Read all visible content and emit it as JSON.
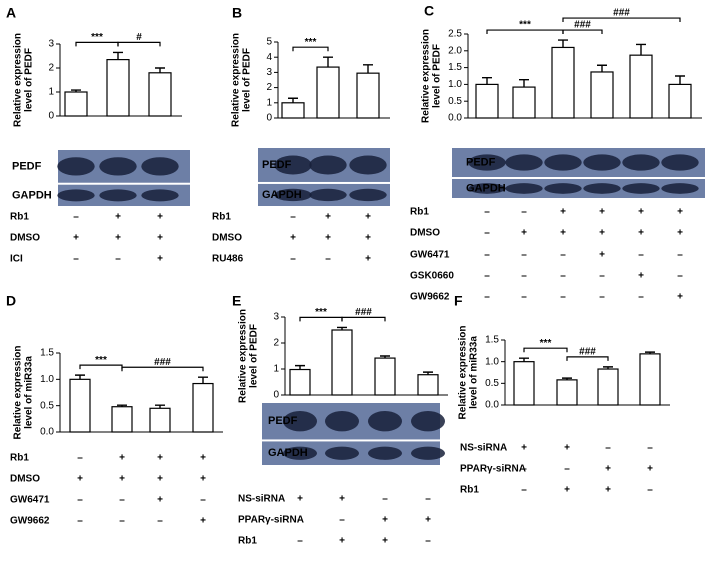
{
  "chart_data": [
    {
      "type": "bar",
      "panel": "A",
      "ylabel": [
        "Relative expression",
        "level of PEDF"
      ],
      "categories": [
        null,
        null,
        null
      ],
      "values": [
        1.0,
        2.35,
        1.8
      ],
      "errors": [
        0.08,
        0.3,
        0.2
      ],
      "ylim": [
        0,
        3
      ],
      "yticks": [
        0,
        1,
        2,
        3
      ],
      "color": "#ffffff",
      "annotations": [
        {
          "label": "***",
          "from": 0,
          "to": 1
        },
        {
          "label": "#",
          "from": 1,
          "to": 2
        }
      ],
      "blots": [
        "PEDF",
        "GAPDH"
      ],
      "treatments": [
        {
          "name": "Rb1",
          "marks": [
            "–",
            "+",
            "+"
          ]
        },
        {
          "name": "DMSO",
          "marks": [
            "+",
            "+",
            "+"
          ]
        },
        {
          "name": "ICI",
          "marks": [
            "–",
            "–",
            "+"
          ]
        }
      ]
    },
    {
      "type": "bar",
      "panel": "B",
      "ylabel": [
        "Relative expression",
        "level of PEDF"
      ],
      "categories": [
        null,
        null,
        null
      ],
      "values": [
        1.0,
        3.35,
        2.95
      ],
      "errors": [
        0.3,
        0.65,
        0.55
      ],
      "ylim": [
        0,
        5
      ],
      "yticks": [
        0,
        1,
        2,
        3,
        4,
        5
      ],
      "color": "#ffffff",
      "annotations": [
        {
          "label": "***",
          "from": 0,
          "to": 1
        }
      ],
      "blots": [
        "PEDF",
        "GAPDH"
      ],
      "treatments": [
        {
          "name": "Rb1",
          "marks": [
            "–",
            "+",
            "+"
          ]
        },
        {
          "name": "DMSO",
          "marks": [
            "+",
            "+",
            "+"
          ]
        },
        {
          "name": "RU486",
          "marks": [
            "–",
            "–",
            "+"
          ]
        }
      ]
    },
    {
      "type": "bar",
      "panel": "C",
      "ylabel": [
        "Relative expression",
        "level of PEDF"
      ],
      "categories": [
        null,
        null,
        null,
        null,
        null,
        null
      ],
      "values": [
        1.0,
        0.92,
        2.1,
        1.37,
        1.87,
        1.0
      ],
      "errors": [
        0.2,
        0.22,
        0.22,
        0.2,
        0.32,
        0.25
      ],
      "ylim": [
        0,
        2.5
      ],
      "yticks": [
        {
          "value": 0,
          "label": "0.0"
        },
        0.5,
        {
          "value": 1,
          "label": "1.0"
        },
        1.5,
        {
          "value": 2,
          "label": "2.0"
        },
        2.5
      ],
      "color": "#ffffff",
      "annotations": [
        {
          "label": "***",
          "from": 0,
          "to": 2
        },
        {
          "label": "###",
          "from": 2,
          "to": 3
        },
        {
          "label": "###",
          "from": 2,
          "to": 5
        }
      ],
      "blots": [
        "PEDF",
        "GAPDH"
      ],
      "treatments": [
        {
          "name": "Rb1",
          "marks": [
            "–",
            "–",
            "+",
            "+",
            "+",
            "+"
          ]
        },
        {
          "name": "DMSO",
          "marks": [
            "–",
            "+",
            "+",
            "+",
            "+",
            "+"
          ]
        },
        {
          "name": "GW6471",
          "marks": [
            "–",
            "–",
            "–",
            "+",
            "–",
            "–"
          ]
        },
        {
          "name": "GSK0660",
          "marks": [
            "–",
            "–",
            "–",
            "–",
            "+",
            "–"
          ]
        },
        {
          "name": "GW9662",
          "marks": [
            "–",
            "–",
            "–",
            "–",
            "–",
            "+"
          ]
        }
      ]
    },
    {
      "type": "bar",
      "panel": "D",
      "ylabel": [
        "Relative expression",
        "level of miR33a"
      ],
      "categories": [
        null,
        null,
        null,
        null
      ],
      "values": [
        1.0,
        0.48,
        0.45,
        0.92
      ],
      "errors": [
        0.08,
        0.03,
        0.06,
        0.12
      ],
      "ylim": [
        0,
        1.5
      ],
      "yticks": [
        {
          "value": 0,
          "label": "0.0"
        },
        0.5,
        {
          "value": 1,
          "label": "1.0"
        },
        1.5
      ],
      "color": "#ffffff",
      "annotations": [
        {
          "label": "***",
          "from": 0,
          "to": 1
        },
        {
          "label": "###",
          "from": 1,
          "to": 3
        }
      ],
      "treatments": [
        {
          "name": "Rb1",
          "marks": [
            "–",
            "+",
            "+",
            "+"
          ]
        },
        {
          "name": "DMSO",
          "marks": [
            "+",
            "+",
            "+",
            "+"
          ]
        },
        {
          "name": "GW6471",
          "marks": [
            "–",
            "–",
            "+",
            "–"
          ]
        },
        {
          "name": "GW9662",
          "marks": [
            "–",
            "–",
            "–",
            "+"
          ]
        }
      ]
    },
    {
      "type": "bar",
      "panel": "E",
      "ylabel": [
        "Relative expression",
        "level of PEDF"
      ],
      "categories": [
        null,
        null,
        null,
        null
      ],
      "values": [
        0.98,
        2.5,
        1.42,
        0.78
      ],
      "errors": [
        0.15,
        0.1,
        0.08,
        0.1
      ],
      "ylim": [
        0,
        3
      ],
      "yticks": [
        0,
        1,
        2,
        3
      ],
      "color": "#ffffff",
      "annotations": [
        {
          "label": "***",
          "from": 0,
          "to": 1
        },
        {
          "label": "###",
          "from": 1,
          "to": 2
        }
      ],
      "blots": [
        "PEDF",
        "GAPDH"
      ],
      "treatments": [
        {
          "name": "NS-siRNA",
          "marks": [
            "+",
            "+",
            "–",
            "–"
          ]
        },
        {
          "name": "PPARγ-siRNA",
          "marks": [
            "–",
            "–",
            "+",
            "+"
          ]
        },
        {
          "name": "Rb1",
          "marks": [
            "–",
            "+",
            "+",
            "–"
          ]
        }
      ]
    },
    {
      "type": "bar",
      "panel": "F",
      "ylabel": [
        "Relative expression",
        "level of miR33a"
      ],
      "categories": [
        null,
        null,
        null,
        null
      ],
      "values": [
        1.0,
        0.58,
        0.83,
        1.18
      ],
      "errors": [
        0.08,
        0.04,
        0.05,
        0.04
      ],
      "ylim": [
        0,
        1.5
      ],
      "yticks": [
        {
          "value": 0,
          "label": "0.0"
        },
        0.5,
        {
          "value": 1,
          "label": "1.0"
        },
        1.5
      ],
      "color": "#ffffff",
      "annotations": [
        {
          "label": "***",
          "from": 0,
          "to": 1
        },
        {
          "label": "###",
          "from": 1,
          "to": 2
        }
      ],
      "treatments": [
        {
          "name": "NS-siRNA",
          "marks": [
            "+",
            "+",
            "–",
            "–"
          ]
        },
        {
          "name": "PPARγ-siRNA",
          "marks": [
            "–",
            "–",
            "+",
            "+"
          ]
        },
        {
          "name": "Rb1",
          "marks": [
            "–",
            "+",
            "+",
            "–"
          ]
        }
      ]
    }
  ]
}
